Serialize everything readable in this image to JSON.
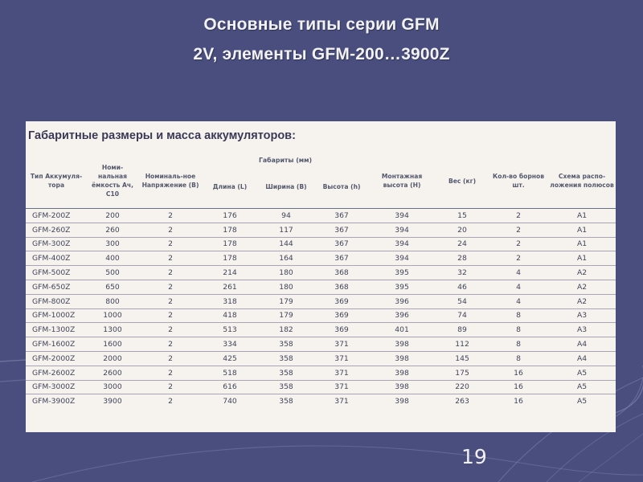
{
  "title": {
    "line1": "Основные типы серии GFM",
    "line2": "2V, элементы GFM-200…3900Z"
  },
  "panel": {
    "caption": "Габаритные размеры и масса аккумуляторов:"
  },
  "table": {
    "group_header": "Габариты (мм)",
    "columns": [
      "Тип Аккумуля-тора",
      "Номи-нальная ёмкость Ач, С10",
      "Номиналь-ное Напряжение (В)",
      "Длина (L)",
      "Ширина (В)",
      "Высота (h)",
      "Монтажная высота (Н)",
      "Вес (кг)",
      "Кол-во борнов шт.",
      "Схема распо-ложения полюсов"
    ],
    "rows": [
      [
        "GFM-200Z",
        "200",
        "2",
        "176",
        "94",
        "367",
        "394",
        "15",
        "2",
        "A1"
      ],
      [
        "GFM-260Z",
        "260",
        "2",
        "178",
        "117",
        "367",
        "394",
        "20",
        "2",
        "A1"
      ],
      [
        "GFM-300Z",
        "300",
        "2",
        "178",
        "144",
        "367",
        "394",
        "24",
        "2",
        "A1"
      ],
      [
        "GFM-400Z",
        "400",
        "2",
        "178",
        "164",
        "367",
        "394",
        "28",
        "2",
        "A1"
      ],
      [
        "GFM-500Z",
        "500",
        "2",
        "214",
        "180",
        "368",
        "395",
        "32",
        "4",
        "A2"
      ],
      [
        "GFM-650Z",
        "650",
        "2",
        "261",
        "180",
        "368",
        "395",
        "46",
        "4",
        "A2"
      ],
      [
        "GFM-800Z",
        "800",
        "2",
        "318",
        "179",
        "369",
        "396",
        "54",
        "4",
        "A2"
      ],
      [
        "GFM-1000Z",
        "1000",
        "2",
        "418",
        "179",
        "369",
        "396",
        "74",
        "8",
        "A3"
      ],
      [
        "GFM-1300Z",
        "1300",
        "2",
        "513",
        "182",
        "369",
        "401",
        "89",
        "8",
        "A3"
      ],
      [
        "GFM-1600Z",
        "1600",
        "2",
        "334",
        "358",
        "371",
        "398",
        "112",
        "8",
        "A4"
      ],
      [
        "GFM-2000Z",
        "2000",
        "2",
        "425",
        "358",
        "371",
        "398",
        "145",
        "8",
        "A4"
      ],
      [
        "GFM-2600Z",
        "2600",
        "2",
        "518",
        "358",
        "371",
        "398",
        "175",
        "16",
        "A5"
      ],
      [
        "GFM-3000Z",
        "3000",
        "2",
        "616",
        "358",
        "371",
        "398",
        "220",
        "16",
        "A5"
      ],
      [
        "GFM-3900Z",
        "3900",
        "2",
        "740",
        "358",
        "371",
        "398",
        "263",
        "16",
        "A5"
      ]
    ]
  },
  "page_number": "19",
  "colors": {
    "background": "#4a4e7e",
    "panel": "#f6f3ef",
    "title_text": "#f2f2f2",
    "table_text": "#3f4458"
  }
}
